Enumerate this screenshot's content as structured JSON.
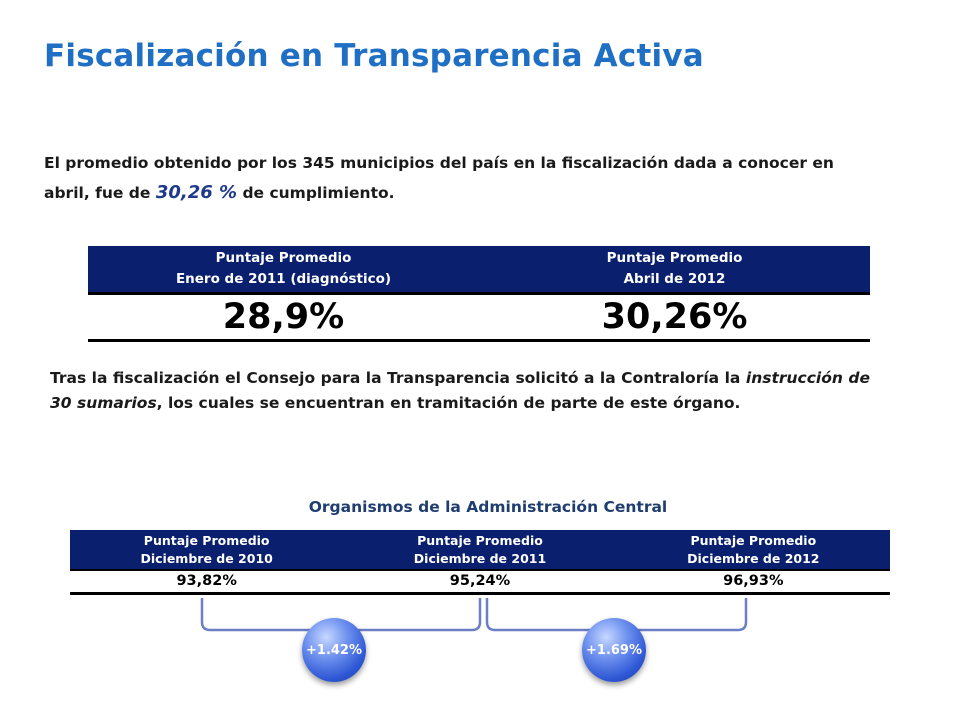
{
  "title": "Fiscalización en Transparencia Activa",
  "intro": {
    "before": "El promedio obtenido por los 345 municipios del país en la fiscalización dada a conocer en abril, fue de ",
    "highlight": "30,26 %",
    "after": " de cumplimiento."
  },
  "table1": {
    "headers": [
      {
        "line1": "Puntaje Promedio",
        "line2": "Enero de 2011 (diagnóstico)"
      },
      {
        "line1": "Puntaje Promedio",
        "line2": "Abril de 2012"
      }
    ],
    "values": [
      "28,9%",
      "30,26%"
    ]
  },
  "paragraph": {
    "before": "Tras la fiscalización el Consejo para la Transparencia solicitó a la Contraloría la ",
    "italic": "instrucción de 30 sumarios",
    "after": ", los cuales se encuentran en tramitación de parte de este órgano."
  },
  "subtitle": "Organismos de la Administración Central",
  "table2": {
    "headers": [
      {
        "line1": "Puntaje Promedio",
        "line2": "Diciembre de 2010"
      },
      {
        "line1": "Puntaje Promedio",
        "line2": "Diciembre de 2011"
      },
      {
        "line1": "Puntaje Promedio",
        "line2": "Diciembre de 2012"
      }
    ],
    "values": [
      "93,82%",
      "95,24%",
      "96,93%"
    ]
  },
  "badges": [
    "+1.42%",
    "+1.69%"
  ],
  "colors": {
    "title": "#1f6fc5",
    "header_bg": "#0a1f6e",
    "highlight": "#1f3a8a",
    "subtitle": "#1f3d6e",
    "bubble": "#2e57d4",
    "bracket": "#6c7fc4"
  }
}
